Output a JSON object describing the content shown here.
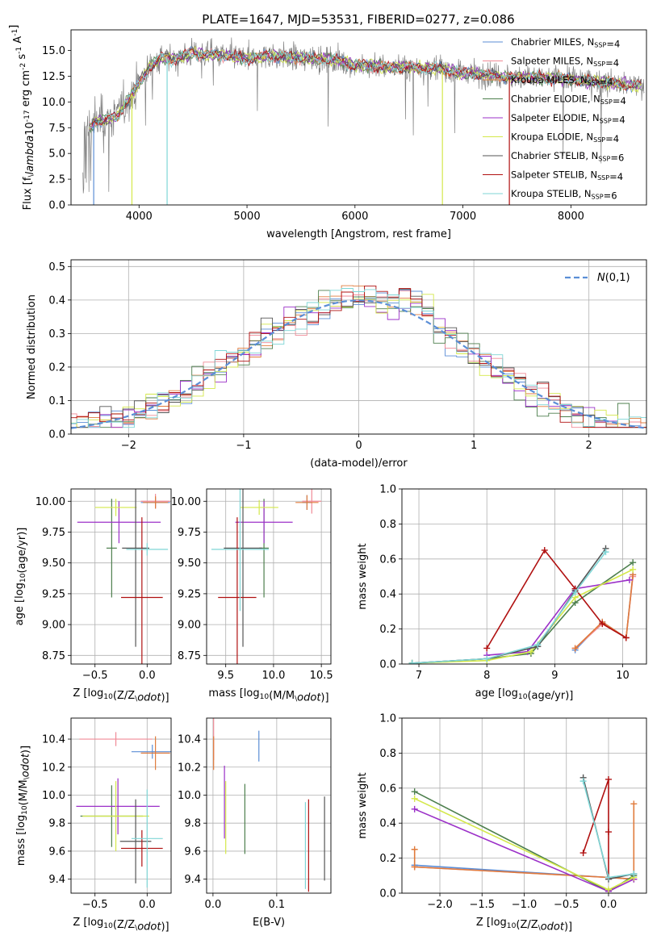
{
  "figure": {
    "title": "PLATE=1647, MJD=53531, FIBERID=0277, z=0.086"
  },
  "series": [
    {
      "name": "Chabrier MILES, N$_{SSP}$=4",
      "color": "#5b8ed6"
    },
    {
      "name": "Salpeter MILES, N$_{SSP}$=4",
      "color": "#f08a96"
    },
    {
      "name": "Kroupa MILES, N$_{SSP}$=4",
      "color": "#e07b3c"
    },
    {
      "name": "Chabrier ELODIE, N$_{SSP}$=4",
      "color": "#4d7f4d"
    },
    {
      "name": "Salpeter ELODIE, N$_{SSP}$=4",
      "color": "#9b30c8"
    },
    {
      "name": "Kroupa ELODIE, N$_{SSP}$=4",
      "color": "#d4e84a"
    },
    {
      "name": "Chabrier STELIB, N$_{SSP}$=6",
      "color": "#555555"
    },
    {
      "name": "Salpeter STELIB, N$_{SSP}$=4",
      "color": "#b01010"
    },
    {
      "name": "Kroupa STELIB, N$_{SSP}$=6",
      "color": "#7fd6d6"
    }
  ],
  "chart_data": [
    {
      "id": "spectrum",
      "type": "line",
      "xlabel": "wavelength [Angstrom, rest frame]",
      "ylabel": "Flux [f$_\\lambda$10$^{-17}$ erg cm$^{-2}$ s$^{-1}$ A$^{-1}$]",
      "xlim": [
        3370,
        8700
      ],
      "ylim": [
        0,
        17
      ],
      "xticks": [
        4000,
        5000,
        6000,
        7000,
        8000
      ],
      "yticks": [
        0.0,
        2.5,
        5.0,
        7.5,
        10.0,
        12.5,
        15.0
      ],
      "grid": false,
      "legend": "upper right",
      "data_line": {
        "color": "#808080"
      },
      "model_anchor_x": [
        3540,
        3600,
        3700,
        3800,
        3900,
        4000,
        4100,
        4200,
        4300,
        4400,
        4500,
        4600,
        4800,
        5000,
        5200,
        5500,
        5800,
        6000,
        6300,
        6500,
        6800,
        7000,
        7200,
        7400,
        7600,
        7800,
        8000,
        8200,
        8400,
        8600
      ],
      "model_anchor_y": [
        7.5,
        8.1,
        8.3,
        8.6,
        10.3,
        11.8,
        13.4,
        14.3,
        14.2,
        14.4,
        14.8,
        14.6,
        14.5,
        14.2,
        14.5,
        14.3,
        14.1,
        13.6,
        13.4,
        13.4,
        13.2,
        12.8,
        12.7,
        12.4,
        12.4,
        12.3,
        12.2,
        12.0,
        11.8,
        11.6
      ],
      "absorption_lines": [
        {
          "x": 3580,
          "depth": 8.0,
          "series": 0
        },
        {
          "x": 3934,
          "depth": 12.0,
          "series": 5
        },
        {
          "x": 4260,
          "depth": 14.0,
          "series": 8
        },
        {
          "x": 6810,
          "depth": 13.5,
          "series": 5
        },
        {
          "x": 7430,
          "depth": 12.0,
          "series": 7
        }
      ]
    },
    {
      "id": "residuals",
      "type": "line",
      "xlabel": "(data-model)/error",
      "ylabel": "Normed distribution",
      "xlim": [
        -2.5,
        2.5
      ],
      "ylim": [
        0,
        0.52
      ],
      "xticks": [
        -2,
        -1,
        0,
        1,
        2
      ],
      "yticks": [
        0.0,
        0.1,
        0.2,
        0.3,
        0.4,
        0.5
      ],
      "grid": true,
      "legend": "upper right",
      "gaussian_label": "$\\mathcal{N}(0,1)$",
      "gaussian_color": "#5b8ed6",
      "bin_width": 0.1
    },
    {
      "id": "age_vs_Z",
      "type": "scatter",
      "xlabel": "Z [log$_{10}$(Z/Z$_\\odot$)]",
      "ylabel": "age  [log$_{10}$(age/yr)]",
      "xlim": [
        -0.73,
        0.23
      ],
      "ylim": [
        8.68,
        10.1
      ],
      "xticks": [
        -0.5,
        0.0
      ],
      "yticks": [
        8.75,
        9.0,
        9.25,
        9.5,
        9.75,
        10.0
      ],
      "grid": true,
      "points": [
        {
          "s": 0,
          "x": 0.08,
          "y": 9.99,
          "xerr": 0.14,
          "yerr": 0.04
        },
        {
          "s": 1,
          "x": 0.08,
          "y": 10.0,
          "xerr": 0.14,
          "yerr": 0.06
        },
        {
          "s": 2,
          "x": 0.08,
          "y": 9.99,
          "xerr": 0.12,
          "yerr": 0.05
        },
        {
          "s": 3,
          "x": -0.34,
          "y": 9.62,
          "xerr": 0.05,
          "yerr": 0.4
        },
        {
          "s": 4,
          "x": -0.27,
          "y": 9.83,
          "xerr": 0.4,
          "yerr": 0.17
        },
        {
          "s": 5,
          "x": -0.3,
          "y": 9.95,
          "xerr": 0.2,
          "yerr": 0.07
        },
        {
          "s": 6,
          "x": -0.11,
          "y": 9.62,
          "xerr": 0.13,
          "yerr": 0.8
        },
        {
          "s": 7,
          "x": -0.05,
          "y": 9.22,
          "xerr": 0.2,
          "yerr": 0.65
        },
        {
          "s": 8,
          "x": 0.0,
          "y": 9.61,
          "xerr": 0.2,
          "yerr": 0.05
        }
      ]
    },
    {
      "id": "age_vs_mass",
      "type": "scatter",
      "xlabel": "mass [log$_{10}$(M/M$_\\odot$)]",
      "ylabel": "",
      "xlim": [
        9.3,
        10.6
      ],
      "ylim": [
        8.68,
        10.1
      ],
      "xticks": [
        9.5,
        10.0,
        10.5
      ],
      "yticks": [
        8.75,
        9.0,
        9.25,
        9.5,
        9.75,
        10.0
      ],
      "grid": true,
      "points": [
        {
          "s": 0,
          "x": 10.35,
          "y": 9.99,
          "xerr": 0.05,
          "yerr": 0.06
        },
        {
          "s": 1,
          "x": 10.4,
          "y": 10.0,
          "xerr": 0.1,
          "yerr": 0.1
        },
        {
          "s": 2,
          "x": 10.35,
          "y": 9.99,
          "xerr": 0.12,
          "yerr": 0.06
        },
        {
          "s": 3,
          "x": 9.9,
          "y": 9.62,
          "xerr": 0.05,
          "yerr": 0.4
        },
        {
          "s": 4,
          "x": 9.9,
          "y": 9.83,
          "xerr": 0.3,
          "yerr": 0.17
        },
        {
          "s": 5,
          "x": 9.85,
          "y": 9.95,
          "xerr": 0.2,
          "yerr": 0.06
        },
        {
          "s": 6,
          "x": 9.68,
          "y": 9.62,
          "xerr": 0.2,
          "yerr": 0.8
        },
        {
          "s": 7,
          "x": 9.62,
          "y": 9.22,
          "xerr": 0.2,
          "yerr": 0.65
        },
        {
          "s": 8,
          "x": 9.65,
          "y": 9.61,
          "xerr": 0.3,
          "yerr": 0.5
        }
      ]
    },
    {
      "id": "weight_vs_age",
      "type": "line",
      "xlabel": "age  [log$_{10}$(age/yr)]",
      "ylabel": "mass weight",
      "xlim": [
        6.75,
        10.35
      ],
      "ylim": [
        0,
        1.0
      ],
      "xticks": [
        7,
        8,
        9,
        10
      ],
      "yticks": [
        0.0,
        0.2,
        0.4,
        0.6,
        0.8,
        1.0
      ],
      "grid": true,
      "lines": [
        {
          "s": 0,
          "x": [
            9.3,
            9.7,
            10.05,
            10.15
          ],
          "y": [
            0.08,
            0.24,
            0.15,
            0.51
          ]
        },
        {
          "s": 1,
          "x": [
            9.3,
            9.7,
            10.05,
            10.15
          ],
          "y": [
            0.09,
            0.23,
            0.15,
            0.5
          ]
        },
        {
          "s": 2,
          "x": [
            9.3,
            9.7,
            10.05,
            10.15
          ],
          "y": [
            0.09,
            0.24,
            0.15,
            0.51
          ]
        },
        {
          "s": 3,
          "x": [
            6.9,
            8.0,
            8.65,
            9.3,
            10.15
          ],
          "y": [
            0.005,
            0.03,
            0.06,
            0.35,
            0.58
          ]
        },
        {
          "s": 4,
          "x": [
            8.0,
            8.6,
            9.3,
            10.1
          ],
          "y": [
            0.05,
            0.07,
            0.43,
            0.48
          ]
        },
        {
          "s": 5,
          "x": [
            6.9,
            8.0,
            8.65,
            9.3,
            10.15
          ],
          "y": [
            0.005,
            0.02,
            0.07,
            0.38,
            0.54
          ]
        },
        {
          "s": 6,
          "x": [
            6.9,
            8.0,
            8.75,
            9.3,
            9.75
          ],
          "y": [
            0.005,
            0.03,
            0.1,
            0.42,
            0.66
          ]
        },
        {
          "s": 7,
          "x": [
            8.0,
            8.85,
            9.3,
            9.7,
            10.05
          ],
          "y": [
            0.09,
            0.65,
            0.43,
            0.23,
            0.15
          ]
        },
        {
          "s": 8,
          "x": [
            6.9,
            8.0,
            8.75,
            9.3,
            9.75
          ],
          "y": [
            0.005,
            0.03,
            0.11,
            0.41,
            0.64
          ]
        }
      ]
    },
    {
      "id": "mass_vs_Z",
      "type": "scatter",
      "xlabel": "Z [log$_{10}$(Z/Z$_\\odot$)]",
      "ylabel": "mass [log$_{10}$(M/M$_\\odot$)]",
      "xlim": [
        -0.73,
        0.23
      ],
      "ylim": [
        9.3,
        10.55
      ],
      "xticks": [
        -0.5,
        0.0
      ],
      "yticks": [
        9.4,
        9.6,
        9.8,
        10.0,
        10.2,
        10.4
      ],
      "grid": true,
      "points": [
        {
          "s": 0,
          "x": 0.05,
          "y": 10.31,
          "xerr": 0.2,
          "yerr": 0.05
        },
        {
          "s": 1,
          "x": -0.3,
          "y": 10.4,
          "xerr": 0.35,
          "yerr": 0.05
        },
        {
          "s": 2,
          "x": 0.08,
          "y": 10.3,
          "xerr": 0.14,
          "yerr": 0.12
        },
        {
          "s": 3,
          "x": -0.34,
          "y": 9.85,
          "xerr": 0.3,
          "yerr": 0.22
        },
        {
          "s": 4,
          "x": -0.28,
          "y": 9.92,
          "xerr": 0.4,
          "yerr": 0.2
        },
        {
          "s": 5,
          "x": -0.3,
          "y": 9.85,
          "xerr": 0.32,
          "yerr": 0.25
        },
        {
          "s": 6,
          "x": -0.11,
          "y": 9.67,
          "xerr": 0.15,
          "yerr": 0.3
        },
        {
          "s": 7,
          "x": -0.05,
          "y": 9.62,
          "xerr": 0.2,
          "yerr": 0.13
        },
        {
          "s": 8,
          "x": 0.0,
          "y": 9.69,
          "xerr": 0.15,
          "yerr": 0.35
        }
      ]
    },
    {
      "id": "mass_vs_ebv",
      "type": "scatter",
      "xlabel": "E(B-V)",
      "ylabel": "",
      "xlim": [
        -0.01,
        0.185
      ],
      "ylim": [
        9.3,
        10.55
      ],
      "xticks": [
        0.0,
        0.1
      ],
      "yticks": [
        9.4,
        9.6,
        9.8,
        10.0,
        10.2,
        10.4
      ],
      "grid": true,
      "points": [
        {
          "s": 0,
          "x": 0.072,
          "y": 10.35,
          "xerr": 0,
          "yerr": 0.11
        },
        {
          "s": 1,
          "x": 0.001,
          "y": 10.4,
          "xerr": 0,
          "yerr": 0.15
        },
        {
          "s": 2,
          "x": 0.001,
          "y": 10.3,
          "xerr": 0,
          "yerr": 0.12
        },
        {
          "s": 3,
          "x": 0.05,
          "y": 9.83,
          "xerr": 0,
          "yerr": 0.25
        },
        {
          "s": 4,
          "x": 0.018,
          "y": 9.95,
          "xerr": 0,
          "yerr": 0.26
        },
        {
          "s": 5,
          "x": 0.02,
          "y": 9.84,
          "xerr": 0,
          "yerr": 0.26
        },
        {
          "s": 6,
          "x": 0.175,
          "y": 9.69,
          "xerr": 0,
          "yerr": 0.3
        },
        {
          "s": 7,
          "x": 0.15,
          "y": 9.64,
          "xerr": 0,
          "yerr": 0.33
        },
        {
          "s": 8,
          "x": 0.145,
          "y": 9.64,
          "xerr": 0,
          "yerr": 0.31
        }
      ]
    },
    {
      "id": "weight_vs_Z",
      "type": "line",
      "xlabel": "Z [log$_{10}$(Z/Z$_\\odot$)]",
      "ylabel": "mass weight",
      "xlim": [
        -2.45,
        0.45
      ],
      "ylim": [
        0,
        1.0
      ],
      "xticks": [
        -2.0,
        -1.5,
        -1.0,
        -0.5,
        0.0
      ],
      "yticks": [
        0.0,
        0.2,
        0.4,
        0.6,
        0.8,
        1.0
      ],
      "grid": true,
      "lines": [
        {
          "s": 0,
          "x": [
            -2.3,
            0.0,
            0.3
          ],
          "y": [
            0.16,
            0.09,
            0.08
          ]
        },
        {
          "s": 1,
          "x": [
            -2.3,
            0.0,
            0.3
          ],
          "y": [
            0.15,
            0.09,
            0.08
          ]
        },
        {
          "s": 2,
          "x": [
            -2.3,
            -2.3,
            0.0,
            0.3,
            0.3
          ],
          "y": [
            0.25,
            0.15,
            0.09,
            0.08,
            0.51
          ]
        },
        {
          "s": 3,
          "x": [
            -2.3,
            0.0,
            0.3
          ],
          "y": [
            0.58,
            0.01,
            0.1
          ]
        },
        {
          "s": 4,
          "x": [
            -2.3,
            0.0,
            0.3
          ],
          "y": [
            0.48,
            0.01,
            0.08
          ]
        },
        {
          "s": 5,
          "x": [
            -2.3,
            0.0,
            0.3
          ],
          "y": [
            0.54,
            0.02,
            0.09
          ]
        },
        {
          "s": 6,
          "x": [
            -0.3,
            0.0,
            0.3
          ],
          "y": [
            0.66,
            0.08,
            0.11
          ]
        },
        {
          "s": 7,
          "x": [
            -0.3,
            0.0,
            0.0,
            0.0
          ],
          "y": [
            0.23,
            0.65,
            0.35,
            0.09
          ]
        },
        {
          "s": 8,
          "x": [
            -0.3,
            0.0,
            0.3
          ],
          "y": [
            0.64,
            0.09,
            0.11
          ]
        }
      ]
    }
  ]
}
